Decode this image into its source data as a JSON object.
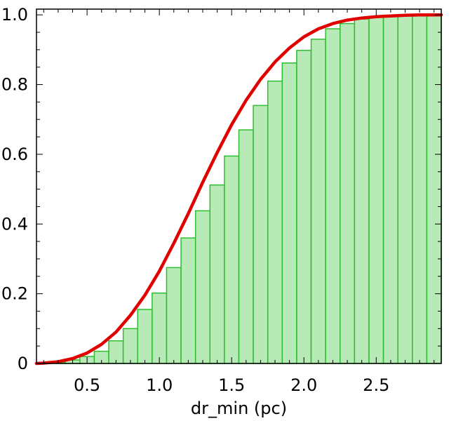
{
  "chart_data": {
    "type": "bar",
    "xlabel": "dr_min (pc)",
    "ylabel": "",
    "xlim": [
      0.15,
      2.95
    ],
    "ylim": [
      0,
      1.0
    ],
    "x_ticks": [
      "0.5",
      "1.0",
      "1.5",
      "2.0",
      "2.5"
    ],
    "x_tick_values": [
      0.5,
      1.0,
      1.5,
      2.0,
      2.5
    ],
    "y_ticks": [
      "0",
      "0.2",
      "0.4",
      "0.6",
      "0.8",
      "1.0"
    ],
    "y_tick_values": [
      0,
      0.2,
      0.4,
      0.6,
      0.8,
      1.0
    ],
    "series": [
      {
        "type": "histogram",
        "color": "#b8eab8",
        "edge_color": "#2ebd2e",
        "bin_width": 0.1,
        "bin_starts": [
          0.15,
          0.25,
          0.35,
          0.45,
          0.55,
          0.65,
          0.75,
          0.85,
          0.95,
          1.05,
          1.15,
          1.25,
          1.35,
          1.45,
          1.55,
          1.65,
          1.75,
          1.85,
          1.95,
          2.05,
          2.15,
          2.25,
          2.35,
          2.45,
          2.55,
          2.65,
          2.75,
          2.85
        ],
        "values": [
          0.0,
          0.003,
          0.01,
          0.02,
          0.035,
          0.065,
          0.1,
          0.155,
          0.202,
          0.275,
          0.36,
          0.438,
          0.512,
          0.595,
          0.67,
          0.74,
          0.81,
          0.862,
          0.898,
          0.93,
          0.96,
          0.975,
          0.988,
          0.995,
          0.997,
          0.999,
          1.0,
          1.0
        ]
      },
      {
        "type": "line",
        "color": "#e00000",
        "x": [
          0.15,
          0.2,
          0.3,
          0.4,
          0.5,
          0.6,
          0.7,
          0.8,
          0.9,
          1.0,
          1.1,
          1.2,
          1.3,
          1.4,
          1.5,
          1.6,
          1.7,
          1.8,
          1.9,
          2.0,
          2.1,
          2.2,
          2.3,
          2.4,
          2.5,
          2.6,
          2.7,
          2.8,
          2.9,
          2.95
        ],
        "y": [
          0.0,
          0.001,
          0.005,
          0.014,
          0.03,
          0.055,
          0.09,
          0.138,
          0.196,
          0.265,
          0.345,
          0.43,
          0.52,
          0.605,
          0.685,
          0.755,
          0.815,
          0.865,
          0.905,
          0.937,
          0.96,
          0.975,
          0.985,
          0.991,
          0.995,
          0.997,
          0.999,
          1.0,
          1.0,
          1.0
        ]
      }
    ]
  }
}
